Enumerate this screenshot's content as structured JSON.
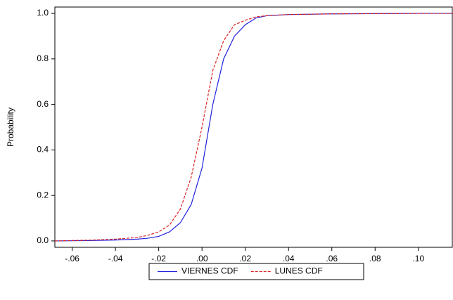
{
  "chart_data": {
    "type": "line",
    "ylabel": "Probability",
    "x": [
      -0.068,
      -0.05,
      -0.04,
      -0.03,
      -0.025,
      -0.02,
      -0.015,
      -0.01,
      -0.005,
      0,
      0.005,
      0.01,
      0.015,
      0.02,
      0.025,
      0.03,
      0.04,
      0.06,
      0.1,
      0.116
    ],
    "series": [
      {
        "name": "VIERNES CDF",
        "color": "#2222dd",
        "style": "solid",
        "values": [
          0,
          0.002,
          0.004,
          0.008,
          0.012,
          0.02,
          0.04,
          0.08,
          0.16,
          0.32,
          0.6,
          0.8,
          0.9,
          0.95,
          0.98,
          0.99,
          0.995,
          0.998,
          1.0,
          1.0
        ]
      },
      {
        "name": "LUNES CDF",
        "color": "#dd2222",
        "style": "dashed",
        "values": [
          0,
          0.004,
          0.008,
          0.015,
          0.025,
          0.04,
          0.07,
          0.14,
          0.28,
          0.5,
          0.75,
          0.88,
          0.95,
          0.97,
          0.985,
          0.99,
          0.995,
          0.998,
          1.0,
          1.0
        ]
      }
    ],
    "xlim": [
      -0.068,
      0.116
    ],
    "ylim": [
      -0.028,
      1.028
    ],
    "xticks": [
      {
        "value": -0.06,
        "label": "-.06"
      },
      {
        "value": -0.04,
        "label": "-.04"
      },
      {
        "value": -0.02,
        "label": "-.02"
      },
      {
        "value": 0,
        "label": ".00"
      },
      {
        "value": 0.02,
        "label": ".02"
      },
      {
        "value": 0.04,
        "label": ".04"
      },
      {
        "value": 0.06,
        "label": ".06"
      },
      {
        "value": 0.08,
        "label": ".08"
      },
      {
        "value": 0.1,
        "label": ".10"
      }
    ],
    "yticks": [
      {
        "value": 0,
        "label": "0.0"
      },
      0.2,
      0.4,
      0.6,
      0.8,
      {
        "value": 1,
        "label": "1.0"
      }
    ]
  }
}
